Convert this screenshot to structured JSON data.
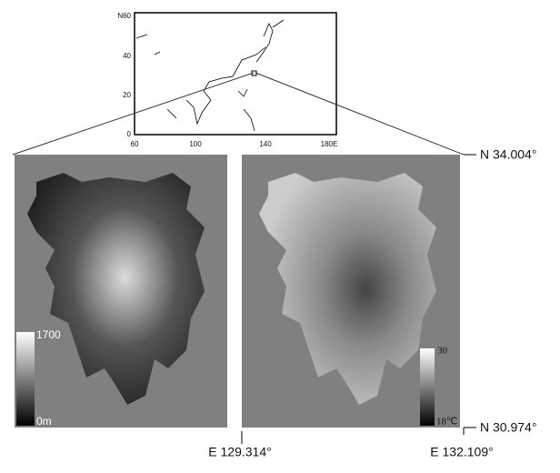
{
  "inset": {
    "yticks": [
      "N60",
      "40",
      "20",
      "0"
    ],
    "xticks": [
      "60",
      "100",
      "140",
      "180E"
    ]
  },
  "maps": [
    {
      "colorbar": {
        "top": "1700",
        "bottom": "0m"
      }
    },
    {
      "colorbar": {
        "top": "30",
        "bottom": "18℃"
      }
    }
  ],
  "coordinates": {
    "north": "N 34.004°",
    "south": "N 30.974°",
    "west": "E 129.314°",
    "east": "E 132.109°"
  }
}
